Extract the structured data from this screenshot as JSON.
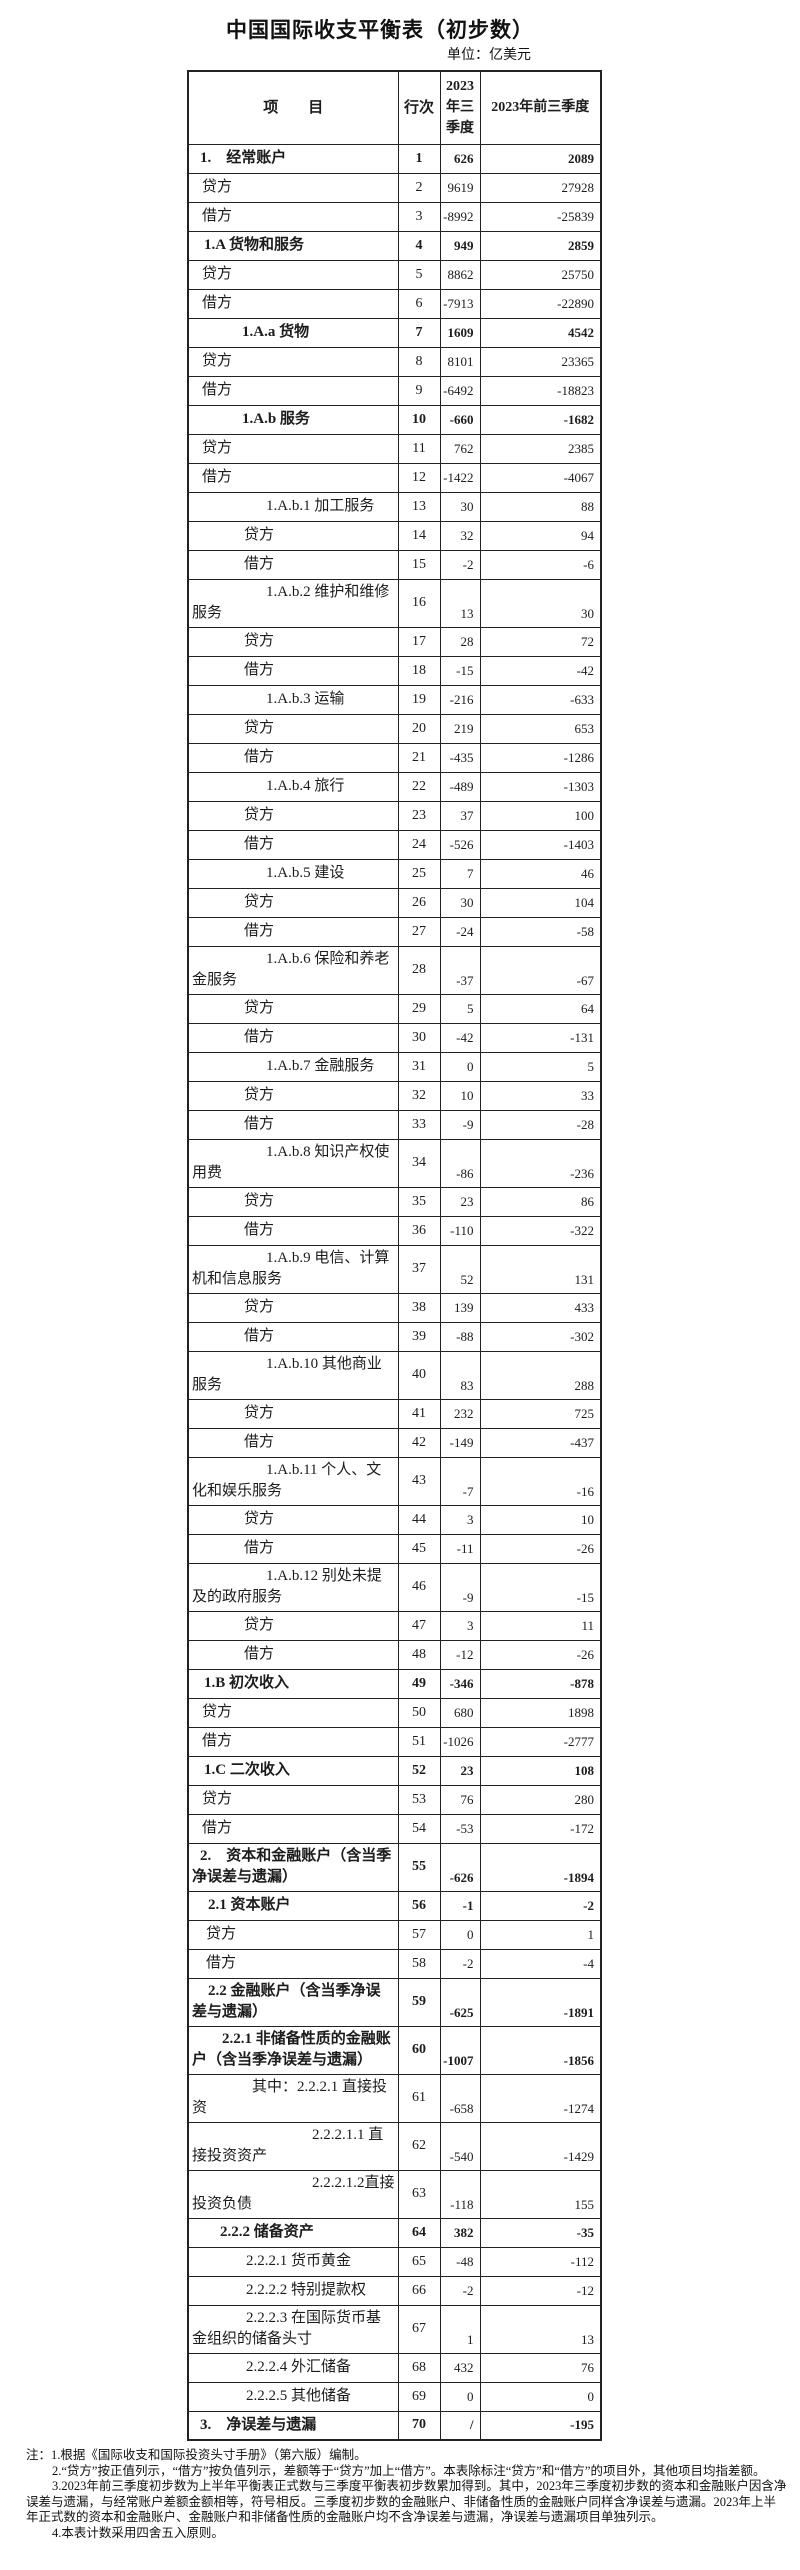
{
  "title": "中国国际收支平衡表（初步数）",
  "unit_label": "单位：亿美元",
  "table": {
    "headers": {
      "item": "项　　目",
      "line_no": "行次",
      "q3": "2023年三季度",
      "ytd": "2023年前三季度"
    },
    "rows": [
      {
        "line": "1",
        "item": "1.　经常账户",
        "q3": "626",
        "ytd": "2089",
        "bold": 1,
        "indent": 8,
        "tall": 0
      },
      {
        "line": "2",
        "item": "贷方",
        "q3": "9619",
        "ytd": "27928",
        "bold": 0,
        "indent": 10,
        "tall": 0
      },
      {
        "line": "3",
        "item": "借方",
        "q3": "-8992",
        "ytd": "-25839",
        "bold": 0,
        "indent": 10,
        "tall": 0
      },
      {
        "line": "4",
        "item": "1.A 货物和服务",
        "q3": "949",
        "ytd": "2859",
        "bold": 1,
        "indent": 12,
        "tall": 0
      },
      {
        "line": "5",
        "item": "贷方",
        "q3": "8862",
        "ytd": "25750",
        "bold": 0,
        "indent": 10,
        "tall": 0
      },
      {
        "line": "6",
        "item": "借方",
        "q3": "-7913",
        "ytd": "-22890",
        "bold": 0,
        "indent": 10,
        "tall": 0
      },
      {
        "line": "7",
        "item": "1.A.a 货物",
        "q3": "1609",
        "ytd": "4542",
        "bold": 1,
        "indent": 50,
        "tall": 0
      },
      {
        "line": "8",
        "item": "贷方",
        "q3": "8101",
        "ytd": "23365",
        "bold": 0,
        "indent": 10,
        "tall": 0
      },
      {
        "line": "9",
        "item": "借方",
        "q3": "-6492",
        "ytd": "-18823",
        "bold": 0,
        "indent": 10,
        "tall": 0
      },
      {
        "line": "10",
        "item": "1.A.b 服务",
        "q3": "-660",
        "ytd": "-1682",
        "bold": 1,
        "indent": 50,
        "tall": 0
      },
      {
        "line": "11",
        "item": "贷方",
        "q3": "762",
        "ytd": "2385",
        "bold": 0,
        "indent": 10,
        "tall": 0
      },
      {
        "line": "12",
        "item": "借方",
        "q3": "-1422",
        "ytd": "-4067",
        "bold": 0,
        "indent": 10,
        "tall": 0
      },
      {
        "line": "13",
        "item": "1.A.b.1 加工服务",
        "q3": "30",
        "ytd": "88",
        "bold": 0,
        "indent": 74,
        "tall": 0
      },
      {
        "line": "14",
        "item": "贷方",
        "q3": "32",
        "ytd": "94",
        "bold": 0,
        "indent": 52,
        "tall": 0
      },
      {
        "line": "15",
        "item": "借方",
        "q3": "-2",
        "ytd": "-6",
        "bold": 0,
        "indent": 52,
        "tall": 0
      },
      {
        "line": "16",
        "item": "1.A.b.2 维护和维修服务",
        "q3": "13",
        "ytd": "30",
        "bold": 0,
        "indent": 74,
        "tall": 1
      },
      {
        "line": "17",
        "item": "贷方",
        "q3": "28",
        "ytd": "72",
        "bold": 0,
        "indent": 52,
        "tall": 0
      },
      {
        "line": "18",
        "item": "借方",
        "q3": "-15",
        "ytd": "-42",
        "bold": 0,
        "indent": 52,
        "tall": 0
      },
      {
        "line": "19",
        "item": "1.A.b.3 运输",
        "q3": "-216",
        "ytd": "-633",
        "bold": 0,
        "indent": 74,
        "tall": 0
      },
      {
        "line": "20",
        "item": "贷方",
        "q3": "219",
        "ytd": "653",
        "bold": 0,
        "indent": 52,
        "tall": 0
      },
      {
        "line": "21",
        "item": "借方",
        "q3": "-435",
        "ytd": "-1286",
        "bold": 0,
        "indent": 52,
        "tall": 0
      },
      {
        "line": "22",
        "item": "1.A.b.4 旅行",
        "q3": "-489",
        "ytd": "-1303",
        "bold": 0,
        "indent": 74,
        "tall": 0
      },
      {
        "line": "23",
        "item": "贷方",
        "q3": "37",
        "ytd": "100",
        "bold": 0,
        "indent": 52,
        "tall": 0
      },
      {
        "line": "24",
        "item": "借方",
        "q3": "-526",
        "ytd": "-1403",
        "bold": 0,
        "indent": 52,
        "tall": 0
      },
      {
        "line": "25",
        "item": "1.A.b.5 建设",
        "q3": "7",
        "ytd": "46",
        "bold": 0,
        "indent": 74,
        "tall": 0
      },
      {
        "line": "26",
        "item": "贷方",
        "q3": "30",
        "ytd": "104",
        "bold": 0,
        "indent": 52,
        "tall": 0
      },
      {
        "line": "27",
        "item": "借方",
        "q3": "-24",
        "ytd": "-58",
        "bold": 0,
        "indent": 52,
        "tall": 0
      },
      {
        "line": "28",
        "item": "1.A.b.6 保险和养老金服务",
        "q3": "-37",
        "ytd": "-67",
        "bold": 0,
        "indent": 74,
        "tall": 1
      },
      {
        "line": "29",
        "item": "贷方",
        "q3": "5",
        "ytd": "64",
        "bold": 0,
        "indent": 52,
        "tall": 0
      },
      {
        "line": "30",
        "item": "借方",
        "q3": "-42",
        "ytd": "-131",
        "bold": 0,
        "indent": 52,
        "tall": 0
      },
      {
        "line": "31",
        "item": "1.A.b.7 金融服务",
        "q3": "0",
        "ytd": "5",
        "bold": 0,
        "indent": 74,
        "tall": 0
      },
      {
        "line": "32",
        "item": "贷方",
        "q3": "10",
        "ytd": "33",
        "bold": 0,
        "indent": 52,
        "tall": 0
      },
      {
        "line": "33",
        "item": "借方",
        "q3": "-9",
        "ytd": "-28",
        "bold": 0,
        "indent": 52,
        "tall": 0
      },
      {
        "line": "34",
        "item": "1.A.b.8 知识产权使用费",
        "q3": "-86",
        "ytd": "-236",
        "bold": 0,
        "indent": 74,
        "tall": 1
      },
      {
        "line": "35",
        "item": "贷方",
        "q3": "23",
        "ytd": "86",
        "bold": 0,
        "indent": 52,
        "tall": 0
      },
      {
        "line": "36",
        "item": "借方",
        "q3": "-110",
        "ytd": "-322",
        "bold": 0,
        "indent": 52,
        "tall": 0
      },
      {
        "line": "37",
        "item": "1.A.b.9 电信、计算机和信息服务",
        "q3": "52",
        "ytd": "131",
        "bold": 0,
        "indent": 74,
        "tall": 1
      },
      {
        "line": "38",
        "item": "贷方",
        "q3": "139",
        "ytd": "433",
        "bold": 0,
        "indent": 52,
        "tall": 0
      },
      {
        "line": "39",
        "item": "借方",
        "q3": "-88",
        "ytd": "-302",
        "bold": 0,
        "indent": 52,
        "tall": 0
      },
      {
        "line": "40",
        "item": "1.A.b.10 其他商业服务",
        "q3": "83",
        "ytd": "288",
        "bold": 0,
        "indent": 74,
        "tall": 1
      },
      {
        "line": "41",
        "item": "贷方",
        "q3": "232",
        "ytd": "725",
        "bold": 0,
        "indent": 52,
        "tall": 0
      },
      {
        "line": "42",
        "item": "借方",
        "q3": "-149",
        "ytd": "-437",
        "bold": 0,
        "indent": 52,
        "tall": 0
      },
      {
        "line": "43",
        "item": "1.A.b.11 个人、文化和娱乐服务",
        "q3": "-7",
        "ytd": "-16",
        "bold": 0,
        "indent": 74,
        "tall": 1
      },
      {
        "line": "44",
        "item": "贷方",
        "q3": "3",
        "ytd": "10",
        "bold": 0,
        "indent": 52,
        "tall": 0
      },
      {
        "line": "45",
        "item": "借方",
        "q3": "-11",
        "ytd": "-26",
        "bold": 0,
        "indent": 52,
        "tall": 0
      },
      {
        "line": "46",
        "item": "1.A.b.12 别处未提及的政府服务",
        "q3": "-9",
        "ytd": "-15",
        "bold": 0,
        "indent": 74,
        "tall": 1
      },
      {
        "line": "47",
        "item": "贷方",
        "q3": "3",
        "ytd": "11",
        "bold": 0,
        "indent": 52,
        "tall": 0
      },
      {
        "line": "48",
        "item": "借方",
        "q3": "-12",
        "ytd": "-26",
        "bold": 0,
        "indent": 52,
        "tall": 0
      },
      {
        "line": "49",
        "item": "1.B 初次收入",
        "q3": "-346",
        "ytd": "-878",
        "bold": 1,
        "indent": 12,
        "tall": 0
      },
      {
        "line": "50",
        "item": "贷方",
        "q3": "680",
        "ytd": "1898",
        "bold": 0,
        "indent": 10,
        "tall": 0
      },
      {
        "line": "51",
        "item": "借方",
        "q3": "-1026",
        "ytd": "-2777",
        "bold": 0,
        "indent": 10,
        "tall": 0
      },
      {
        "line": "52",
        "item": "1.C 二次收入",
        "q3": "23",
        "ytd": "108",
        "bold": 1,
        "indent": 12,
        "tall": 0
      },
      {
        "line": "53",
        "item": "贷方",
        "q3": "76",
        "ytd": "280",
        "bold": 0,
        "indent": 10,
        "tall": 0
      },
      {
        "line": "54",
        "item": "借方",
        "q3": "-53",
        "ytd": "-172",
        "bold": 0,
        "indent": 10,
        "tall": 0
      },
      {
        "line": "55",
        "item": "2.　资本和金融账户（含当季净误差与遗漏）",
        "q3": "-626",
        "ytd": "-1894",
        "bold": 1,
        "indent": 8,
        "tall": 1
      },
      {
        "line": "56",
        "item": "2.1 资本账户",
        "q3": "-1",
        "ytd": "-2",
        "bold": 1,
        "indent": 16,
        "tall": 0
      },
      {
        "line": "57",
        "item": "贷方",
        "q3": "0",
        "ytd": "1",
        "bold": 0,
        "indent": 14,
        "tall": 0
      },
      {
        "line": "58",
        "item": "借方",
        "q3": "-2",
        "ytd": "-4",
        "bold": 0,
        "indent": 14,
        "tall": 0
      },
      {
        "line": "59",
        "item": "2.2 金融账户（含当季净误差与遗漏）",
        "q3": "-625",
        "ytd": "-1891",
        "bold": 1,
        "indent": 16,
        "tall": 1
      },
      {
        "line": "60",
        "item": "2.2.1 非储备性质的金融账户（含当季净误差与遗漏）",
        "q3": "-1007",
        "ytd": "-1856",
        "bold": 1,
        "indent": 30,
        "tall": 1
      },
      {
        "line": "61",
        "item": "其中：2.2.2.1 直接投资",
        "q3": "-658",
        "ytd": "-1274",
        "bold": 0,
        "indent": 60,
        "tall": 1
      },
      {
        "line": "62",
        "item": "2.2.2.1.1 直接投资资产",
        "q3": "-540",
        "ytd": "-1429",
        "bold": 0,
        "indent": 120,
        "tall": 1
      },
      {
        "line": "63",
        "item": "2.2.2.1.2直接投资负债",
        "q3": "-118",
        "ytd": "155",
        "bold": 0,
        "indent": 120,
        "tall": 1
      },
      {
        "line": "64",
        "item": "2.2.2 储备资产",
        "q3": "382",
        "ytd": "-35",
        "bold": 1,
        "indent": 28,
        "tall": 0
      },
      {
        "line": "65",
        "item": "2.2.2.1 货币黄金",
        "q3": "-48",
        "ytd": "-112",
        "bold": 0,
        "indent": 54,
        "tall": 0
      },
      {
        "line": "66",
        "item": "2.2.2.2 特别提款权",
        "q3": "-2",
        "ytd": "-12",
        "bold": 0,
        "indent": 54,
        "tall": 0
      },
      {
        "line": "67",
        "item": "2.2.2.3 在国际货币基金组织的储备头寸",
        "q3": "1",
        "ytd": "13",
        "bold": 0,
        "indent": 54,
        "tall": 1
      },
      {
        "line": "68",
        "item": "2.2.2.4 外汇储备",
        "q3": "432",
        "ytd": "76",
        "bold": 0,
        "indent": 54,
        "tall": 0
      },
      {
        "line": "69",
        "item": "2.2.2.5 其他储备",
        "q3": "0",
        "ytd": "0",
        "bold": 0,
        "indent": 54,
        "tall": 0
      },
      {
        "line": "70",
        "item": "3.　净误差与遗漏",
        "q3": "/",
        "ytd": "-195",
        "bold": 1,
        "indent": 8,
        "tall": 0
      }
    ]
  },
  "notes": [
    "注：1.根据《国际收支和国际投资头寸手册》（第六版）编制。",
    "2.“贷方”按正值列示，“借方”按负值列示，差额等于“贷方”加上“借方”。本表除标注“贷方”和“借方”的项目外，其他项目均指差额。",
    "3.2023年前三季度初步数为上半年平衡表正式数与三季度平衡表初步数累加得到。其中，2023年三季度初步数的资本和金融账户因含净误差与遗漏，与经常账户差额金额相等，符号相反。三季度初步数的金融账户、非储备性质的金融账户同样含净误差与遗漏。2023年上半年正式数的资本和金融账户、金融账户和非储备性质的金融账户均不含净误差与遗漏，净误差与遗漏项目单独列示。",
    "4.本表计数采用四舍五入原则。"
  ]
}
